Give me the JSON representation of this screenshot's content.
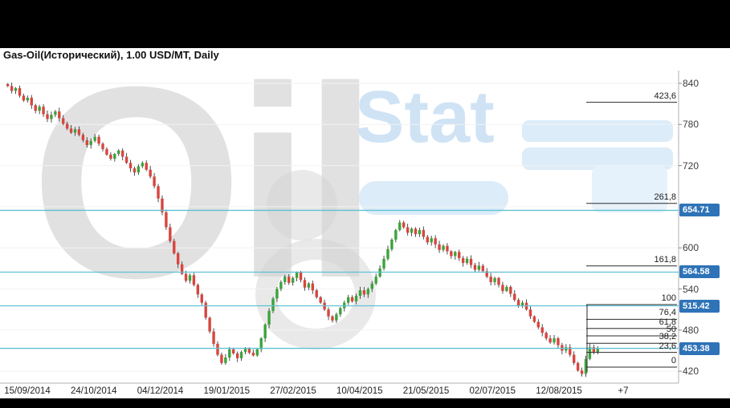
{
  "window": {
    "title": "Gas-Oil(Исторический), 1.00 USD/MT, Daily"
  },
  "watermark": {
    "word_left": "Oil",
    "word_right": "Stat"
  },
  "colors": {
    "candle_up": "#3ca33c",
    "candle_down": "#d8453e",
    "wick": "#3a3a3a",
    "price_line": "#5fc1d4",
    "price_tag_bg": "#2e73b8",
    "fib_line": "#2a2a2a",
    "grid": "#f2f2f2",
    "plot_border": "#b0b0b0"
  },
  "chart_data": {
    "type": "candlestick",
    "title": "Gas-Oil(Исторический), 1.00 USD/MT, Daily",
    "instrument": "Gas-Oil(Исторический)",
    "contract": "1.00 USD/MT",
    "timeframe": "Daily",
    "x_tick_dates": [
      "15/09/2014",
      "24/10/2014",
      "04/12/2014",
      "19/01/2015",
      "27/02/2015",
      "10/04/2015",
      "21/05/2015",
      "02/07/2015",
      "12/08/2015"
    ],
    "x_extra_tick": "+7",
    "y_ticks": [
      840,
      780,
      720,
      600,
      540,
      480,
      420
    ],
    "y_axis_range": [
      410,
      865
    ],
    "grid_step": 60,
    "horizontal_price_lines": [
      654.71,
      564.58,
      515.42,
      453.38
    ],
    "fibonacci_retracement": {
      "labels": [
        "423,6",
        "261,8",
        "161,8",
        "100",
        "76,4",
        "61,8",
        "50",
        "38,2",
        "23,6",
        "0"
      ],
      "levels": [
        423.6,
        261.8,
        161.8,
        100,
        76.4,
        61.8,
        50,
        38.2,
        23.6,
        0
      ]
    },
    "closes": [
      836,
      829,
      833,
      822,
      815,
      819,
      808,
      800,
      806,
      795,
      788,
      794,
      799,
      789,
      781,
      774,
      768,
      773,
      765,
      757,
      750,
      756,
      762,
      752,
      744,
      736,
      730,
      737,
      742,
      733,
      724,
      716,
      710,
      719,
      724,
      714,
      704,
      690,
      672,
      652,
      630,
      610,
      592,
      576,
      562,
      552,
      560,
      546,
      532,
      520,
      498,
      478,
      460,
      444,
      432,
      440,
      452,
      446,
      439,
      448,
      453,
      447,
      443,
      452,
      468,
      488,
      508,
      526,
      540,
      550,
      558,
      549,
      556,
      564,
      553,
      542,
      548,
      538,
      528,
      520,
      510,
      500,
      494,
      503,
      512,
      520,
      528,
      522,
      530,
      538,
      532,
      540,
      548,
      558,
      570,
      584,
      598,
      612,
      626,
      637,
      630,
      622,
      628,
      620,
      626,
      616,
      608,
      614,
      605,
      597,
      603,
      595,
      588,
      594,
      585,
      578,
      584,
      575,
      568,
      574,
      566,
      558,
      550,
      556,
      546,
      537,
      543,
      533,
      524,
      515,
      520,
      510,
      500,
      492,
      484,
      476,
      468,
      462,
      468,
      458,
      450,
      455,
      444,
      432,
      421,
      416,
      438,
      455,
      448,
      453
    ]
  }
}
